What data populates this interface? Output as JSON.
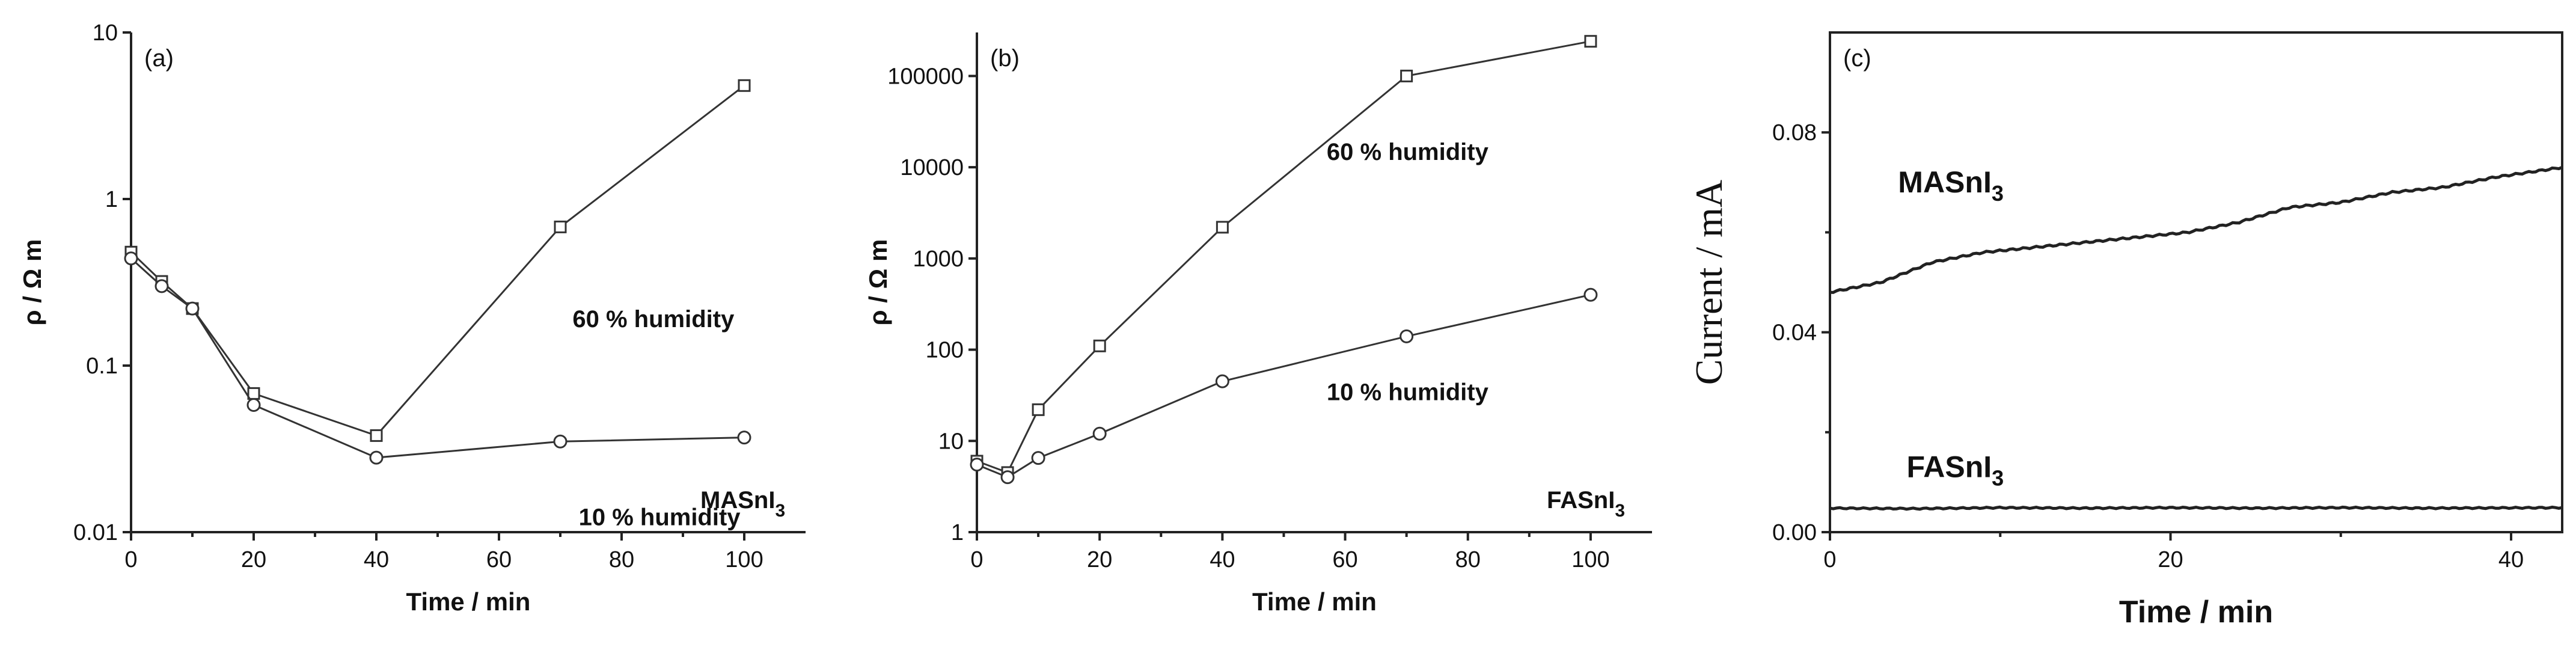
{
  "chart_data": [
    {
      "type": "line",
      "panel_label": "(a)",
      "xlabel": "Time / min",
      "ylabel": "ρ / Ω m",
      "xlim": [
        0,
        110
      ],
      "ylim": [
        0.01,
        10
      ],
      "yscale": "log",
      "x_ticks": [
        0,
        20,
        40,
        60,
        80,
        100
      ],
      "y_ticks": [
        0.01,
        0.1,
        1,
        10
      ],
      "y_tick_labels": [
        "0.01",
        "0.1",
        "1",
        "10"
      ],
      "compound_label": "MASnI",
      "compound_sub": "3",
      "series": [
        {
          "name": "60 % humidity",
          "marker": "square",
          "label_at": [
            72,
            0.17
          ],
          "x": [
            0,
            5,
            10,
            20,
            40,
            70,
            100
          ],
          "y": [
            0.48,
            0.32,
            0.22,
            0.068,
            0.038,
            0.68,
            4.8
          ]
        },
        {
          "name": "10 % humidity",
          "marker": "circle",
          "label_at": [
            73,
            0.011
          ],
          "x": [
            0,
            5,
            10,
            20,
            40,
            70,
            100
          ],
          "y": [
            0.44,
            0.3,
            0.22,
            0.058,
            0.028,
            0.035,
            0.037
          ]
        }
      ]
    },
    {
      "type": "line",
      "panel_label": "(b)",
      "xlabel": "Time / min",
      "ylabel": "ρ / Ω m",
      "xlim": [
        0,
        110
      ],
      "ylim": [
        1,
        300000
      ],
      "yscale": "log",
      "x_ticks": [
        0,
        20,
        40,
        60,
        80,
        100
      ],
      "y_ticks": [
        1,
        10,
        100,
        1000,
        10000,
        100000
      ],
      "y_tick_labels": [
        "1",
        "10",
        "100",
        "1000",
        "10000",
        "100000"
      ],
      "compound_label": "FASnI",
      "compound_sub": "3",
      "series": [
        {
          "name": "60 % humidity",
          "marker": "square",
          "label_at": [
            57,
            12000
          ],
          "x": [
            0,
            5,
            10,
            20,
            40,
            70,
            100
          ],
          "y": [
            6,
            4.5,
            22,
            110,
            2200,
            100000,
            240000
          ]
        },
        {
          "name": "10 % humidity",
          "marker": "circle",
          "label_at": [
            57,
            28
          ],
          "x": [
            0,
            5,
            10,
            20,
            40,
            70,
            100
          ],
          "y": [
            5.5,
            4,
            6.5,
            12,
            45,
            140,
            400
          ]
        }
      ]
    },
    {
      "type": "line",
      "panel_label": "(c)",
      "xlabel": "Time / min",
      "ylabel": "Current / mA",
      "xlim": [
        0,
        43
      ],
      "ylim": [
        0,
        0.1
      ],
      "x_ticks": [
        0,
        20,
        40
      ],
      "y_ticks": [
        0,
        0.04,
        0.08
      ],
      "y_tick_labels": [
        "0.00",
        "0.04",
        "0.08"
      ],
      "series": [
        {
          "name": "MASnI",
          "name_sub": "3",
          "label_at": [
            4,
            0.068
          ],
          "x": [
            0,
            3,
            6,
            9,
            12,
            15,
            18,
            21,
            24,
            27,
            30,
            33,
            36,
            39,
            43
          ],
          "y": [
            0.048,
            0.05,
            0.054,
            0.056,
            0.057,
            0.058,
            0.059,
            0.06,
            0.062,
            0.065,
            0.066,
            0.068,
            0.069,
            0.071,
            0.073
          ]
        },
        {
          "name": "FASnI",
          "name_sub": "3",
          "label_at": [
            4.5,
            0.011
          ],
          "x": [
            0,
            5,
            10,
            15,
            20,
            25,
            30,
            35,
            43
          ],
          "y": [
            0.0048,
            0.0047,
            0.0049,
            0.0048,
            0.0049,
            0.0048,
            0.0049,
            0.0048,
            0.0049
          ]
        }
      ]
    }
  ]
}
